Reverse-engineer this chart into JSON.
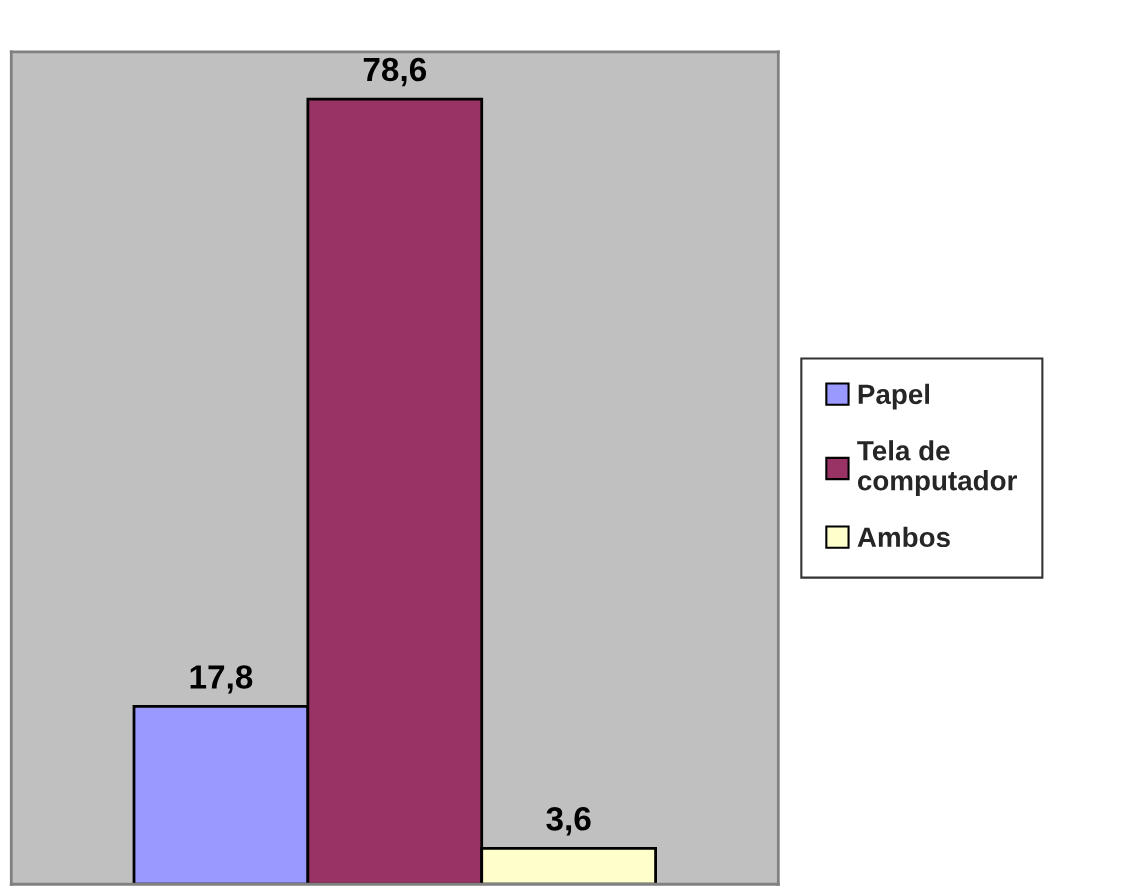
{
  "chart_data": {
    "type": "bar",
    "categories": [
      null
    ],
    "series": [
      {
        "name": "Papel",
        "color": "#9999ff",
        "values": [
          17.8
        ],
        "value_labels": [
          "17,8"
        ]
      },
      {
        "name": "Tela de\ncomputador",
        "color": "#993366",
        "values": [
          78.6
        ],
        "value_labels": [
          "78,6"
        ]
      },
      {
        "name": "Ambos",
        "color": "#ffffcc",
        "values": [
          3.6
        ],
        "value_labels": [
          "3,6"
        ]
      }
    ],
    "tick_labels": false,
    "grid": false,
    "legend": "right"
  }
}
